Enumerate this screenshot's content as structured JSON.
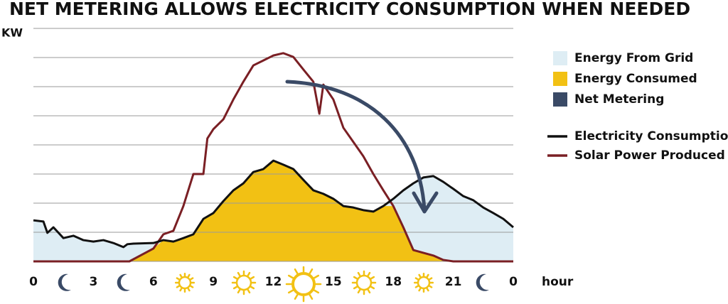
{
  "chart_data": {
    "type": "line",
    "title": "NET METERING ALLOWS ELECTRICITY CONSUMPTION WHEN NEEDED",
    "ylabel": "KW",
    "xlabel": "hour",
    "xlim": [
      0,
      24
    ],
    "xticks": [
      0,
      3,
      6,
      9,
      12,
      15,
      18,
      21,
      {
        "value": 24,
        "label": "0"
      }
    ],
    "ylim": [
      0,
      8
    ],
    "yticks": [
      0,
      1,
      2,
      3,
      4,
      5,
      6,
      7,
      8
    ],
    "grid": true,
    "area_legend": [
      {
        "name": "Energy From Grid",
        "color": "#deedf4"
      },
      {
        "name": "Energy Consumed",
        "color": "#f2c114"
      },
      {
        "name": "Net Metering",
        "color": "#3a4a66"
      }
    ],
    "series": [
      {
        "name": "Electricity Consumption",
        "color": "#111111",
        "x": [
          0,
          0.5,
          0.7,
          1,
          1.5,
          2,
          2.5,
          3,
          3.5,
          4,
          4.5,
          4.7,
          5,
          6,
          6.5,
          7,
          7.5,
          8,
          8.5,
          9,
          9.5,
          10,
          10.5,
          11,
          11.5,
          12,
          12.5,
          13,
          13.5,
          14,
          14.5,
          15,
          15.5,
          16,
          16.5,
          17,
          17.5,
          18,
          18.5,
          19,
          19.5,
          20,
          20.5,
          21,
          21.5,
          22,
          22.5,
          23,
          23.5,
          24
        ],
        "values": [
          1.41,
          1.37,
          0.98,
          1.17,
          0.8,
          0.88,
          0.73,
          0.68,
          0.73,
          0.63,
          0.49,
          0.59,
          0.61,
          0.63,
          0.73,
          0.68,
          0.8,
          0.93,
          1.46,
          1.66,
          2.07,
          2.44,
          2.68,
          3.07,
          3.17,
          3.46,
          3.32,
          3.17,
          2.8,
          2.44,
          2.32,
          2.15,
          1.9,
          1.85,
          1.76,
          1.71,
          1.9,
          2.15,
          2.44,
          2.68,
          2.88,
          2.93,
          2.73,
          2.49,
          2.24,
          2.1,
          1.85,
          1.66,
          1.46,
          1.17
        ]
      },
      {
        "name": "Solar Power Produced",
        "color": "#7a1f24",
        "x": [
          0,
          4.8,
          6,
          6.5,
          7,
          7.5,
          8,
          8.5,
          8.7,
          9,
          9.5,
          10,
          10.5,
          11,
          11.5,
          12,
          12.5,
          13,
          13.5,
          14,
          14.3,
          14.5,
          15,
          15.5,
          16,
          16.5,
          17,
          17.5,
          18,
          18.5,
          19,
          20,
          20.5,
          21,
          24
        ],
        "values": [
          0,
          0,
          0.44,
          0.93,
          1.05,
          1.9,
          3.0,
          3.0,
          4.22,
          4.54,
          4.88,
          5.56,
          6.17,
          6.73,
          6.9,
          7.07,
          7.15,
          7.02,
          6.59,
          6.17,
          5.07,
          6.07,
          5.56,
          4.59,
          4.1,
          3.61,
          3.0,
          2.44,
          1.9,
          1.17,
          0.39,
          0.2,
          0.05,
          0,
          0
        ]
      }
    ]
  }
}
